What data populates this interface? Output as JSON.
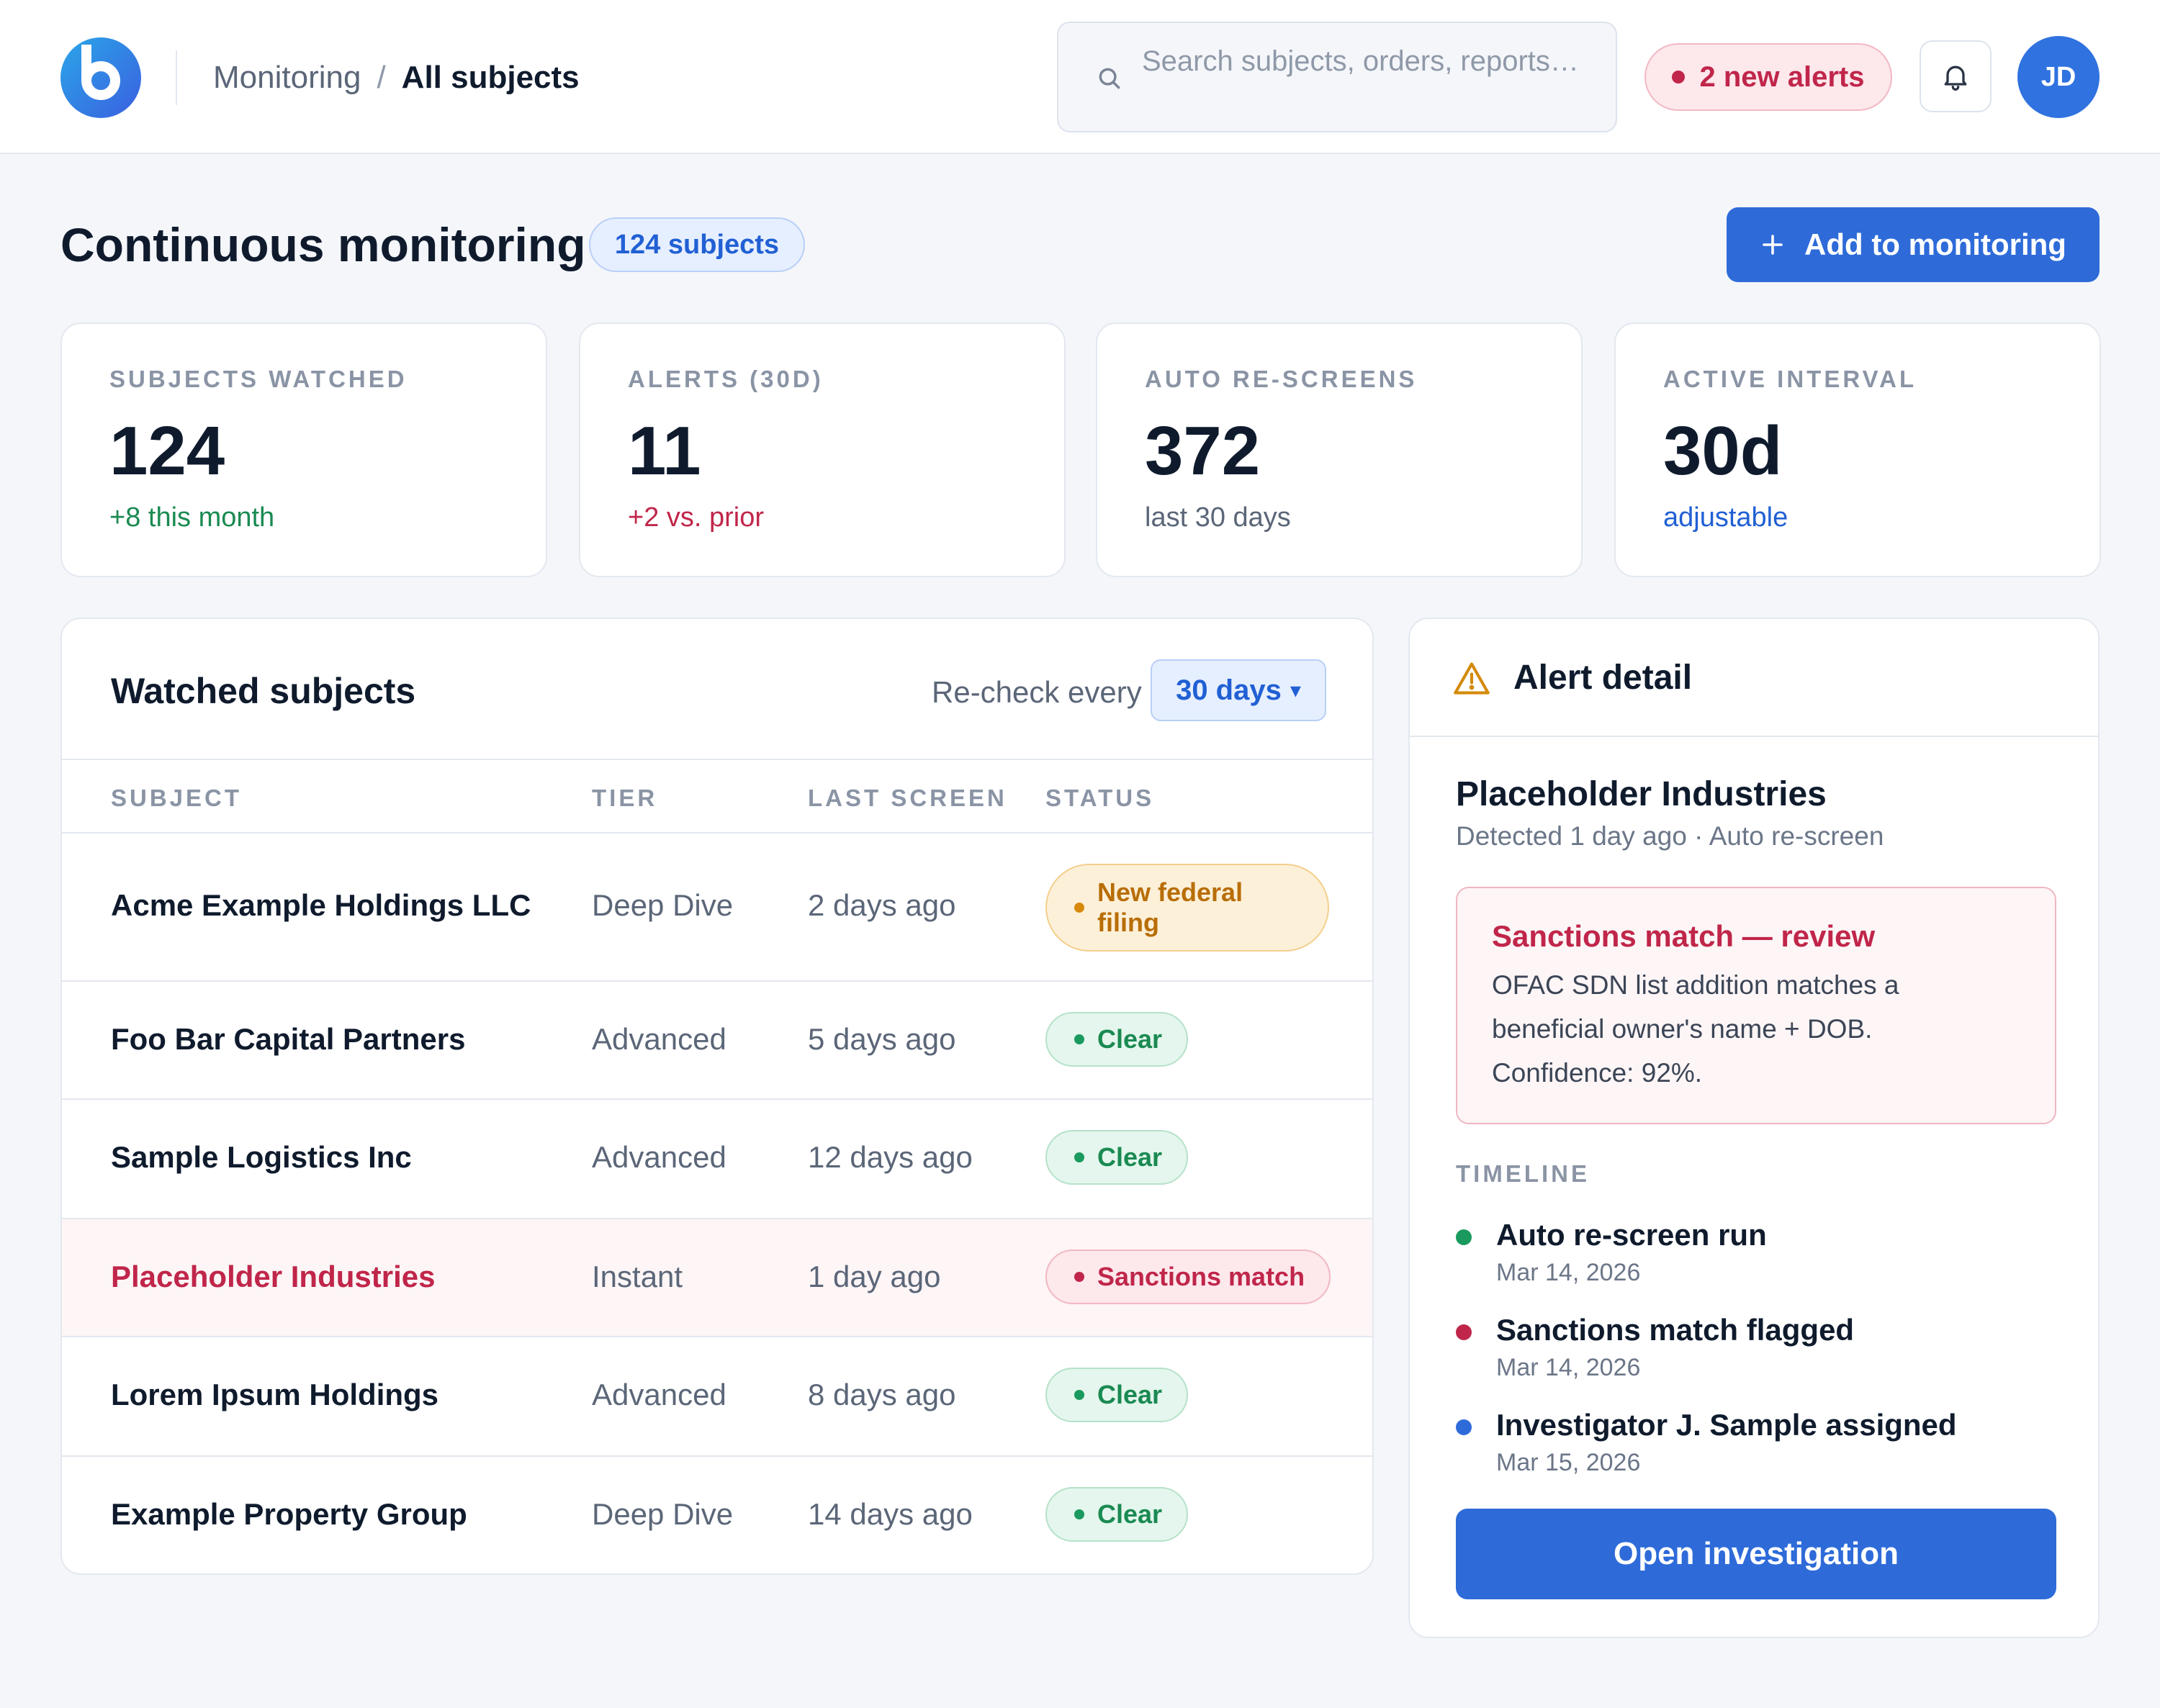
{
  "header": {
    "logo_icon": "brand-logo-icon",
    "breadcrumb": {
      "parent": "Monitoring",
      "separator": "/",
      "current": "All subjects"
    },
    "search": {
      "placeholder": "Search subjects, orders, reports…",
      "icon": "search-icon"
    },
    "alerts_pill": {
      "label": "2 new alerts",
      "color": "#c0264a"
    },
    "bell_icon": "bell-icon",
    "avatar_initials": "JD"
  },
  "page": {
    "title": "Continuous monitoring",
    "subject_count_label": "124 subjects",
    "add_button": {
      "icon": "plus-icon",
      "label": "Add to monitoring"
    }
  },
  "stats": [
    {
      "label": "SUBJECTS WATCHED",
      "value": "124",
      "sub": "+8 this month",
      "sub_color": "#1a8a52"
    },
    {
      "label": "ALERTS (30D)",
      "value": "11",
      "sub": "+2 vs. prior",
      "sub_color": "#c0264a"
    },
    {
      "label": "AUTO RE-SCREENS",
      "value": "372",
      "sub": "last 30 days",
      "sub_color": "#5b6678"
    },
    {
      "label": "ACTIVE INTERVAL",
      "value": "30d",
      "sub": "adjustable",
      "sub_color": "#2160d4"
    }
  ],
  "watched": {
    "title": "Watched subjects",
    "recheck_label": "Re-check every",
    "interval_value": "30 days",
    "interval_caret": "▾",
    "columns": {
      "subject": "SUBJECT",
      "tier": "TIER",
      "last_screen": "LAST SCREEN",
      "status": "STATUS"
    },
    "rows": [
      {
        "subject": "Acme Example Holdings LLC",
        "tier": "Deep Dive",
        "last_screen": "2 days ago",
        "status": "New federal filing",
        "status_kind": "warn"
      },
      {
        "subject": "Foo Bar Capital Partners",
        "tier": "Advanced",
        "last_screen": "5 days ago",
        "status": "Clear",
        "status_kind": "clear"
      },
      {
        "subject": "Sample Logistics Inc",
        "tier": "Advanced",
        "last_screen": "12 days ago",
        "status": "Clear",
        "status_kind": "clear"
      },
      {
        "subject": "Placeholder Industries",
        "tier": "Instant",
        "last_screen": "1 day ago",
        "status": "Sanctions match",
        "status_kind": "danger"
      },
      {
        "subject": "Lorem Ipsum Holdings",
        "tier": "Advanced",
        "last_screen": "8 days ago",
        "status": "Clear",
        "status_kind": "clear"
      },
      {
        "subject": "Example Property Group",
        "tier": "Deep Dive",
        "last_screen": "14 days ago",
        "status": "Clear",
        "status_kind": "clear"
      }
    ]
  },
  "alert_detail": {
    "icon": "warning-triangle-icon",
    "title": "Alert detail",
    "entity": "Placeholder Industries",
    "meta": "Detected 1 day ago · Auto re-screen",
    "match": {
      "title": "Sanctions match — review",
      "description": "OFAC SDN list addition matches a beneficial owner's name + DOB. Confidence: 92%."
    },
    "timeline_label": "TIMELINE",
    "timeline": [
      {
        "text": "Auto re-screen run",
        "date": "Mar 14, 2026",
        "color": "#1a9a5e"
      },
      {
        "text": "Sanctions match flagged",
        "date": "Mar 14, 2026",
        "color": "#c0264a"
      },
      {
        "text": "Investigator J. Sample assigned",
        "date": "Mar 15, 2026",
        "color": "#2e6bd9"
      }
    ],
    "open_button": "Open investigation"
  },
  "colors": {
    "accent": "#2e6bd9",
    "danger": "#c0264a",
    "success": "#1a8a52",
    "warning": "#b86e06"
  }
}
